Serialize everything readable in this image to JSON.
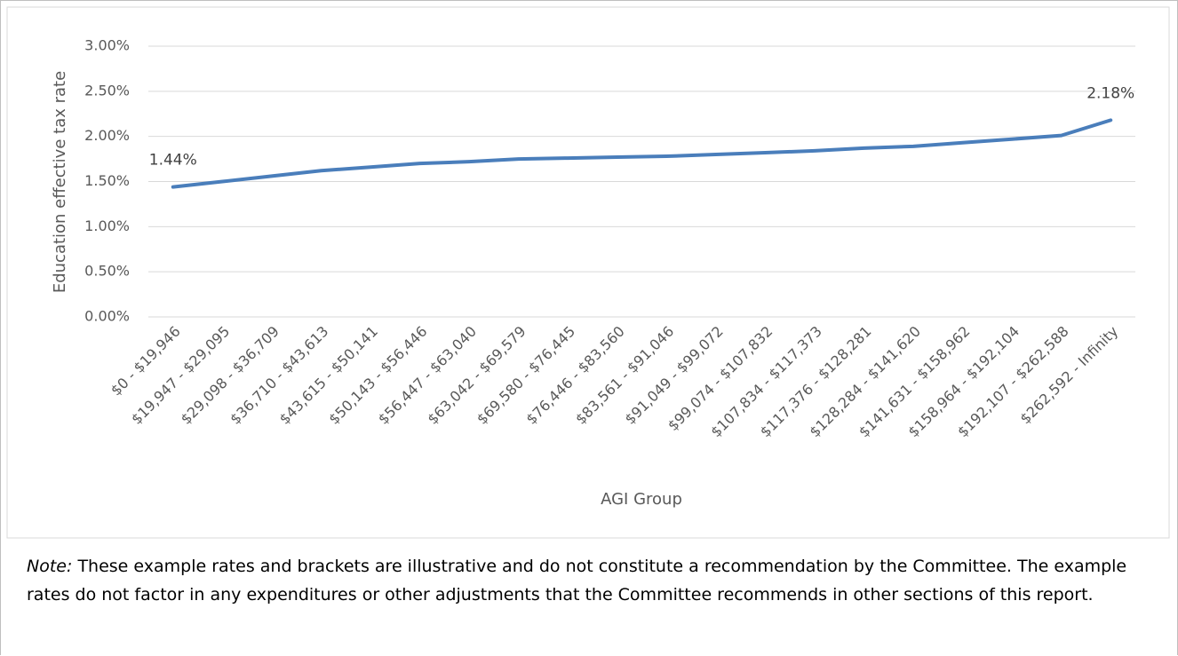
{
  "chart_data": {
    "type": "line",
    "x_label": "AGI Group",
    "y_label": "Education effective tax rate",
    "categories": [
      "$0 - $19,946",
      "$19,947 - $29,095",
      "$29,098 - $36,709",
      "$36,710 - $43,613",
      "$43,615 - $50,141",
      "$50,143 - $56,446",
      "$56,447 - $63,040",
      "$63,042 - $69,579",
      "$69,580 - $76,445",
      "$76,446 - $83,560",
      "$83,561 - $91,046",
      "$91,049 - $99,072",
      "$99,074 - $107,832",
      "$107,834 - $117,373",
      "$117,376 - $128,281",
      "$128,284 - $141,620",
      "$141,631 - $158,962",
      "$158,964 - $192,104",
      "$192,107 - $262,588",
      "$262,592 - Infinity"
    ],
    "values": [
      1.44,
      1.5,
      1.56,
      1.62,
      1.66,
      1.7,
      1.72,
      1.75,
      1.76,
      1.77,
      1.78,
      1.8,
      1.82,
      1.84,
      1.87,
      1.89,
      1.93,
      1.97,
      2.01,
      2.18
    ],
    "value_labels": [
      "1.44%",
      null,
      null,
      null,
      null,
      null,
      null,
      null,
      null,
      null,
      null,
      null,
      null,
      null,
      null,
      null,
      null,
      null,
      null,
      "2.18%"
    ],
    "color": "#4a7ebb",
    "ylim": [
      0,
      3
    ],
    "yticks": [
      {
        "value": 0,
        "label": "0.00%"
      },
      {
        "value": 0.5,
        "label": "0.50%"
      },
      {
        "value": 1,
        "label": "1.00%"
      },
      {
        "value": 1.5,
        "label": "1.50%"
      },
      {
        "value": 2,
        "label": "2.00%"
      },
      {
        "value": 2.5,
        "label": "2.50%"
      },
      {
        "value": 3,
        "label": "3.00%"
      }
    ],
    "grid": true
  },
  "note": {
    "lead": "Note:",
    "text": "These example rates and brackets are illustrative and do not constitute a recommendation by the Committee. The example rates do not factor in any expenditures or other adjustments that the Committee recommends in other sections of this report."
  }
}
